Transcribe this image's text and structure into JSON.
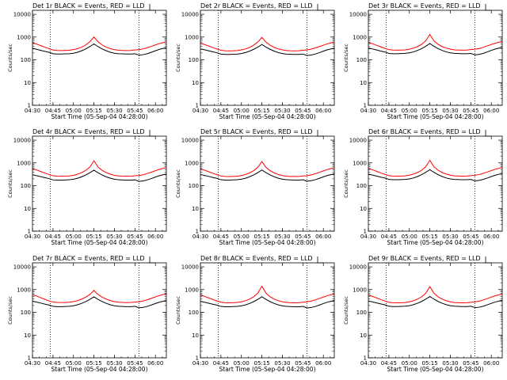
{
  "colors": {
    "events": "#000000",
    "lld": "#ff0000",
    "frame": "#000000",
    "background": "#ffffff"
  },
  "chart_data": {
    "type": "line",
    "grid": false,
    "x_axis": {
      "label": "Start Time (05-Sep-04 04:28:00)",
      "range": [
        "04:30",
        "06:08"
      ],
      "tick_labels": [
        "04:30",
        "04:45",
        "05:00",
        "05:15",
        "05:30",
        "05:45",
        "06:00"
      ]
    },
    "y_axis": {
      "label": "Counts/sec",
      "scale": "log",
      "range": [
        1,
        15000
      ],
      "tick_labels": [
        "1",
        "10",
        "100",
        "1000",
        "10000"
      ]
    },
    "reference_lines": [
      "04:43",
      "05:48"
    ],
    "x": [
      "04:30",
      "04:33",
      "04:36",
      "04:39",
      "04:42",
      "04:45",
      "04:48",
      "04:51",
      "04:54",
      "04:57",
      "05:00",
      "05:03",
      "05:06",
      "05:09",
      "05:12",
      "05:15",
      "05:18",
      "05:21",
      "05:24",
      "05:27",
      "05:30",
      "05:33",
      "05:36",
      "05:39",
      "05:42",
      "05:45",
      "05:48",
      "05:51",
      "05:54",
      "05:57",
      "06:00",
      "06:03",
      "06:06",
      "06:08"
    ],
    "panels": [
      {
        "title": "Det 1r BLACK = Events, RED = LLD",
        "series": [
          {
            "name": "Events",
            "color": "#000000",
            "values": [
              320,
              290,
              260,
              235,
              215,
              185,
              180,
              180,
              182,
              185,
              195,
              215,
              250,
              300,
              380,
              500,
              380,
              300,
              250,
              215,
              195,
              185,
              182,
              180,
              180,
              185,
              160,
              168,
              185,
              215,
              250,
              290,
              320,
              340
            ]
          },
          {
            "name": "LLD",
            "color": "#ff0000",
            "values": [
              560,
              490,
              420,
              360,
              310,
              270,
              258,
              255,
              258,
              262,
              280,
              310,
              360,
              450,
              620,
              1000,
              620,
              450,
              360,
              310,
              280,
              262,
              258,
              255,
              258,
              270,
              280,
              300,
              340,
              390,
              450,
              520,
              580,
              610
            ]
          }
        ]
      },
      {
        "title": "Det 2r BLACK = Events, RED = LLD",
        "series": [
          {
            "name": "Events",
            "color": "#000000",
            "values": [
              300,
              275,
              250,
              225,
              205,
              178,
              172,
              172,
              175,
              178,
              188,
              208,
              240,
              290,
              360,
              470,
              360,
              290,
              240,
              208,
              188,
              178,
              175,
              172,
              172,
              178,
              155,
              162,
              178,
              205,
              240,
              275,
              305,
              325
            ]
          },
          {
            "name": "LLD",
            "color": "#ff0000",
            "values": [
              540,
              470,
              405,
              345,
              300,
              262,
              250,
              248,
              250,
              255,
              272,
              300,
              350,
              440,
              600,
              960,
              600,
              440,
              350,
              300,
              272,
              255,
              250,
              248,
              250,
              262,
              272,
              292,
              330,
              380,
              440,
              505,
              560,
              590
            ]
          }
        ]
      },
      {
        "title": "Det 3r BLACK = Events, RED = LLD",
        "series": [
          {
            "name": "Events",
            "color": "#000000",
            "values": [
              330,
              300,
              270,
              242,
              222,
              190,
              185,
              185,
              188,
              192,
              202,
              222,
              258,
              310,
              395,
              520,
              395,
              310,
              258,
              222,
              202,
              192,
              188,
              185,
              185,
              190,
              165,
              172,
              190,
              222,
              258,
              298,
              330,
              350
            ]
          },
          {
            "name": "LLD",
            "color": "#ff0000",
            "values": [
              580,
              510,
              435,
              372,
              320,
              280,
              268,
              264,
              268,
              272,
              292,
              325,
              380,
              480,
              680,
              1300,
              680,
              480,
              380,
              325,
              292,
              272,
              268,
              264,
              268,
              280,
              292,
              312,
              352,
              405,
              468,
              540,
              600,
              630
            ]
          }
        ]
      },
      {
        "title": "Det 4r BLACK = Events, RED = LLD",
        "series": [
          {
            "name": "Events",
            "color": "#000000",
            "values": [
              300,
              275,
              250,
              225,
              205,
              180,
              175,
              175,
              178,
              182,
              192,
              212,
              245,
              295,
              370,
              480,
              370,
              295,
              245,
              212,
              192,
              182,
              178,
              175,
              175,
              180,
              155,
              162,
              178,
              205,
              240,
              275,
              305,
              325
            ]
          },
          {
            "name": "LLD",
            "color": "#ff0000",
            "values": [
              560,
              490,
              420,
              360,
              310,
              272,
              262,
              260,
              262,
              268,
              285,
              320,
              375,
              470,
              660,
              1250,
              660,
              470,
              375,
              320,
              285,
              268,
              262,
              260,
              262,
              272,
              282,
              302,
              342,
              392,
              455,
              525,
              585,
              615
            ]
          }
        ]
      },
      {
        "title": "Det 5r BLACK = Events, RED = LLD",
        "series": [
          {
            "name": "Events",
            "color": "#000000",
            "values": [
              310,
              282,
              256,
              230,
              210,
              182,
              176,
              176,
              179,
              183,
              193,
              213,
              247,
              297,
              375,
              490,
              375,
              297,
              247,
              213,
              193,
              183,
              179,
              176,
              176,
              182,
              158,
              165,
              182,
              210,
              245,
              282,
              312,
              332
            ]
          },
          {
            "name": "LLD",
            "color": "#ff0000",
            "values": [
              550,
              480,
              412,
              352,
              304,
              266,
              255,
              252,
              255,
              260,
              278,
              310,
              365,
              458,
              640,
              1150,
              640,
              458,
              365,
              310,
              278,
              260,
              255,
              252,
              255,
              266,
              276,
              296,
              335,
              385,
              446,
              515,
              572,
              602
            ]
          }
        ]
      },
      {
        "title": "Det 6r BLACK = Events, RED = LLD",
        "series": [
          {
            "name": "Events",
            "color": "#000000",
            "values": [
              320,
              292,
              264,
              238,
              218,
              188,
              182,
              182,
              185,
              188,
              198,
              218,
              252,
              305,
              385,
              505,
              385,
              305,
              252,
              218,
              198,
              188,
              185,
              182,
              182,
              188,
              162,
              170,
              188,
              216,
              252,
              290,
              322,
              342
            ]
          },
          {
            "name": "LLD",
            "color": "#ff0000",
            "values": [
              570,
              500,
              428,
              366,
              316,
              276,
              265,
              262,
              265,
              270,
              290,
              324,
              380,
              478,
              680,
              1300,
              680,
              478,
              380,
              324,
              290,
              270,
              265,
              262,
              265,
              276,
              286,
              306,
              346,
              398,
              460,
              532,
              592,
              622
            ]
          }
        ]
      },
      {
        "title": "Det 7r BLACK = Events, RED = LLD",
        "series": [
          {
            "name": "Events",
            "color": "#000000",
            "values": [
              310,
              282,
              256,
              230,
              210,
              184,
              178,
              178,
              181,
              185,
              195,
              215,
              248,
              298,
              372,
              480,
              372,
              298,
              248,
              215,
              195,
              185,
              181,
              178,
              178,
              184,
              158,
              165,
              182,
              210,
              245,
              282,
              312,
              332
            ]
          },
          {
            "name": "LLD",
            "color": "#ff0000",
            "values": [
              600,
              520,
              440,
              372,
              320,
              282,
              272,
              270,
              272,
              278,
              296,
              328,
              380,
              465,
              610,
              920,
              610,
              465,
              380,
              328,
              296,
              278,
              272,
              270,
              272,
              282,
              294,
              316,
              358,
              412,
              478,
              552,
              615,
              650
            ]
          }
        ]
      },
      {
        "title": "Det 8r BLACK = Events, RED = LLD",
        "series": [
          {
            "name": "Events",
            "color": "#000000",
            "values": [
              305,
              278,
              252,
              228,
              208,
              182,
              176,
              176,
              179,
              183,
              193,
              213,
              246,
              296,
              372,
              485,
              372,
              296,
              246,
              213,
              193,
              183,
              179,
              176,
              176,
              182,
              156,
              163,
              180,
              208,
              243,
              280,
              310,
              330
            ]
          },
          {
            "name": "LLD",
            "color": "#ff0000",
            "values": [
              580,
              505,
              432,
              368,
              318,
              278,
              266,
              263,
              266,
              272,
              290,
              325,
              382,
              485,
              700,
              1400,
              700,
              485,
              382,
              325,
              290,
              272,
              266,
              263,
              266,
              278,
              290,
              312,
              352,
              405,
              470,
              542,
              602,
              632
            ]
          }
        ]
      },
      {
        "title": "Det 9r BLACK = Events, RED = LLD",
        "series": [
          {
            "name": "Events",
            "color": "#000000",
            "values": [
              315,
              287,
              260,
              234,
              214,
              186,
              180,
              180,
              183,
              187,
              197,
              217,
              251,
              302,
              380,
              498,
              380,
              302,
              251,
              217,
              197,
              187,
              183,
              180,
              180,
              186,
              160,
              168,
              185,
              213,
              248,
              286,
              316,
              336
            ]
          },
          {
            "name": "LLD",
            "color": "#ff0000",
            "values": [
              575,
              502,
              430,
              367,
              316,
              277,
              266,
              263,
              266,
              271,
              290,
              324,
              381,
              482,
              690,
              1350,
              690,
              482,
              381,
              324,
              290,
              271,
              266,
              263,
              266,
              277,
              288,
              309,
              349,
              402,
              466,
              538,
              598,
              628
            ]
          }
        ]
      }
    ]
  }
}
